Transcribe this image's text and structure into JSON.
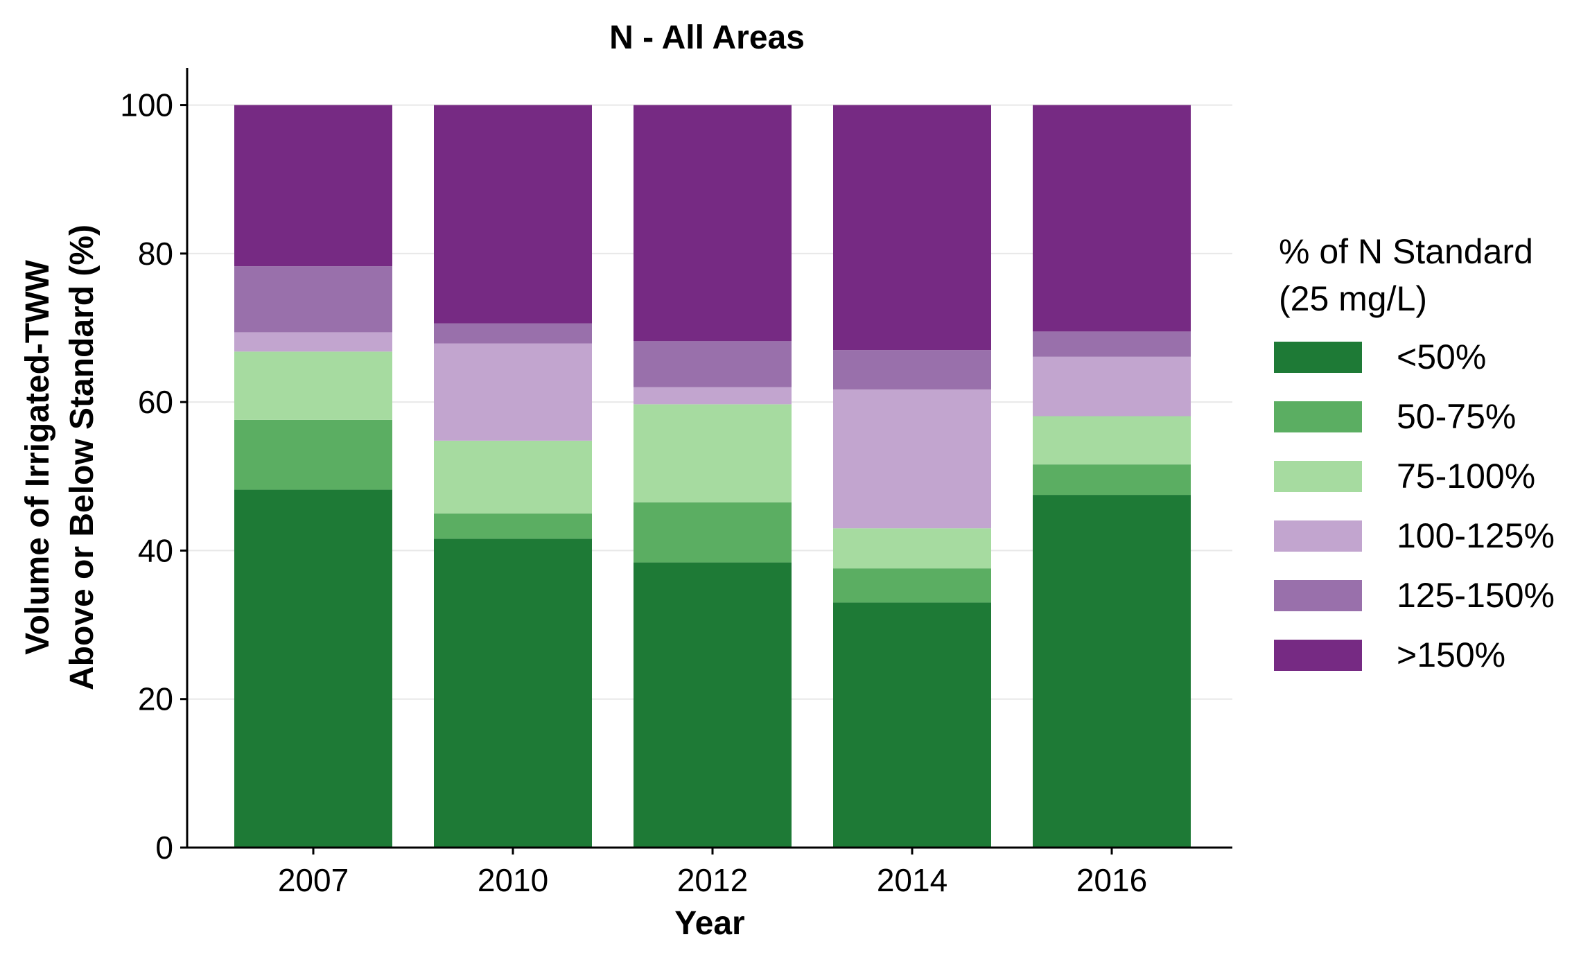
{
  "chart_data": {
    "type": "bar",
    "stacked": true,
    "title": "N - All Areas",
    "xlabel": "Year",
    "ylabel": [
      "Volume of Irrigated-TWW",
      "Above or Below Standard (%)"
    ],
    "categories": [
      "2007",
      "2010",
      "2012",
      "2014",
      "2016"
    ],
    "ylim": [
      0,
      105
    ],
    "yticks": [
      0,
      20,
      40,
      60,
      80,
      100
    ],
    "grid": true,
    "legend": {
      "title": [
        "% of N Standard",
        "(25 mg/L)"
      ],
      "position": "right"
    },
    "series": [
      {
        "name": "<50%",
        "color": "#1e7a36",
        "values": [
          48.2,
          41.6,
          38.4,
          33.0,
          47.5
        ]
      },
      {
        "name": "50-75%",
        "color": "#5bae62",
        "values": [
          9.4,
          3.4,
          8.1,
          4.6,
          4.1
        ]
      },
      {
        "name": "75-100%",
        "color": "#a6dba0",
        "values": [
          9.2,
          9.8,
          13.2,
          5.4,
          6.5
        ]
      },
      {
        "name": "100-125%",
        "color": "#c2a5cf",
        "values": [
          2.6,
          13.1,
          2.3,
          18.7,
          8.0
        ]
      },
      {
        "name": "125-150%",
        "color": "#9970ab",
        "values": [
          8.9,
          2.7,
          6.2,
          5.3,
          3.4
        ]
      },
      {
        "name": ">150%",
        "color": "#762a83",
        "values": [
          21.7,
          29.4,
          31.8,
          33.0,
          30.5
        ]
      }
    ]
  }
}
